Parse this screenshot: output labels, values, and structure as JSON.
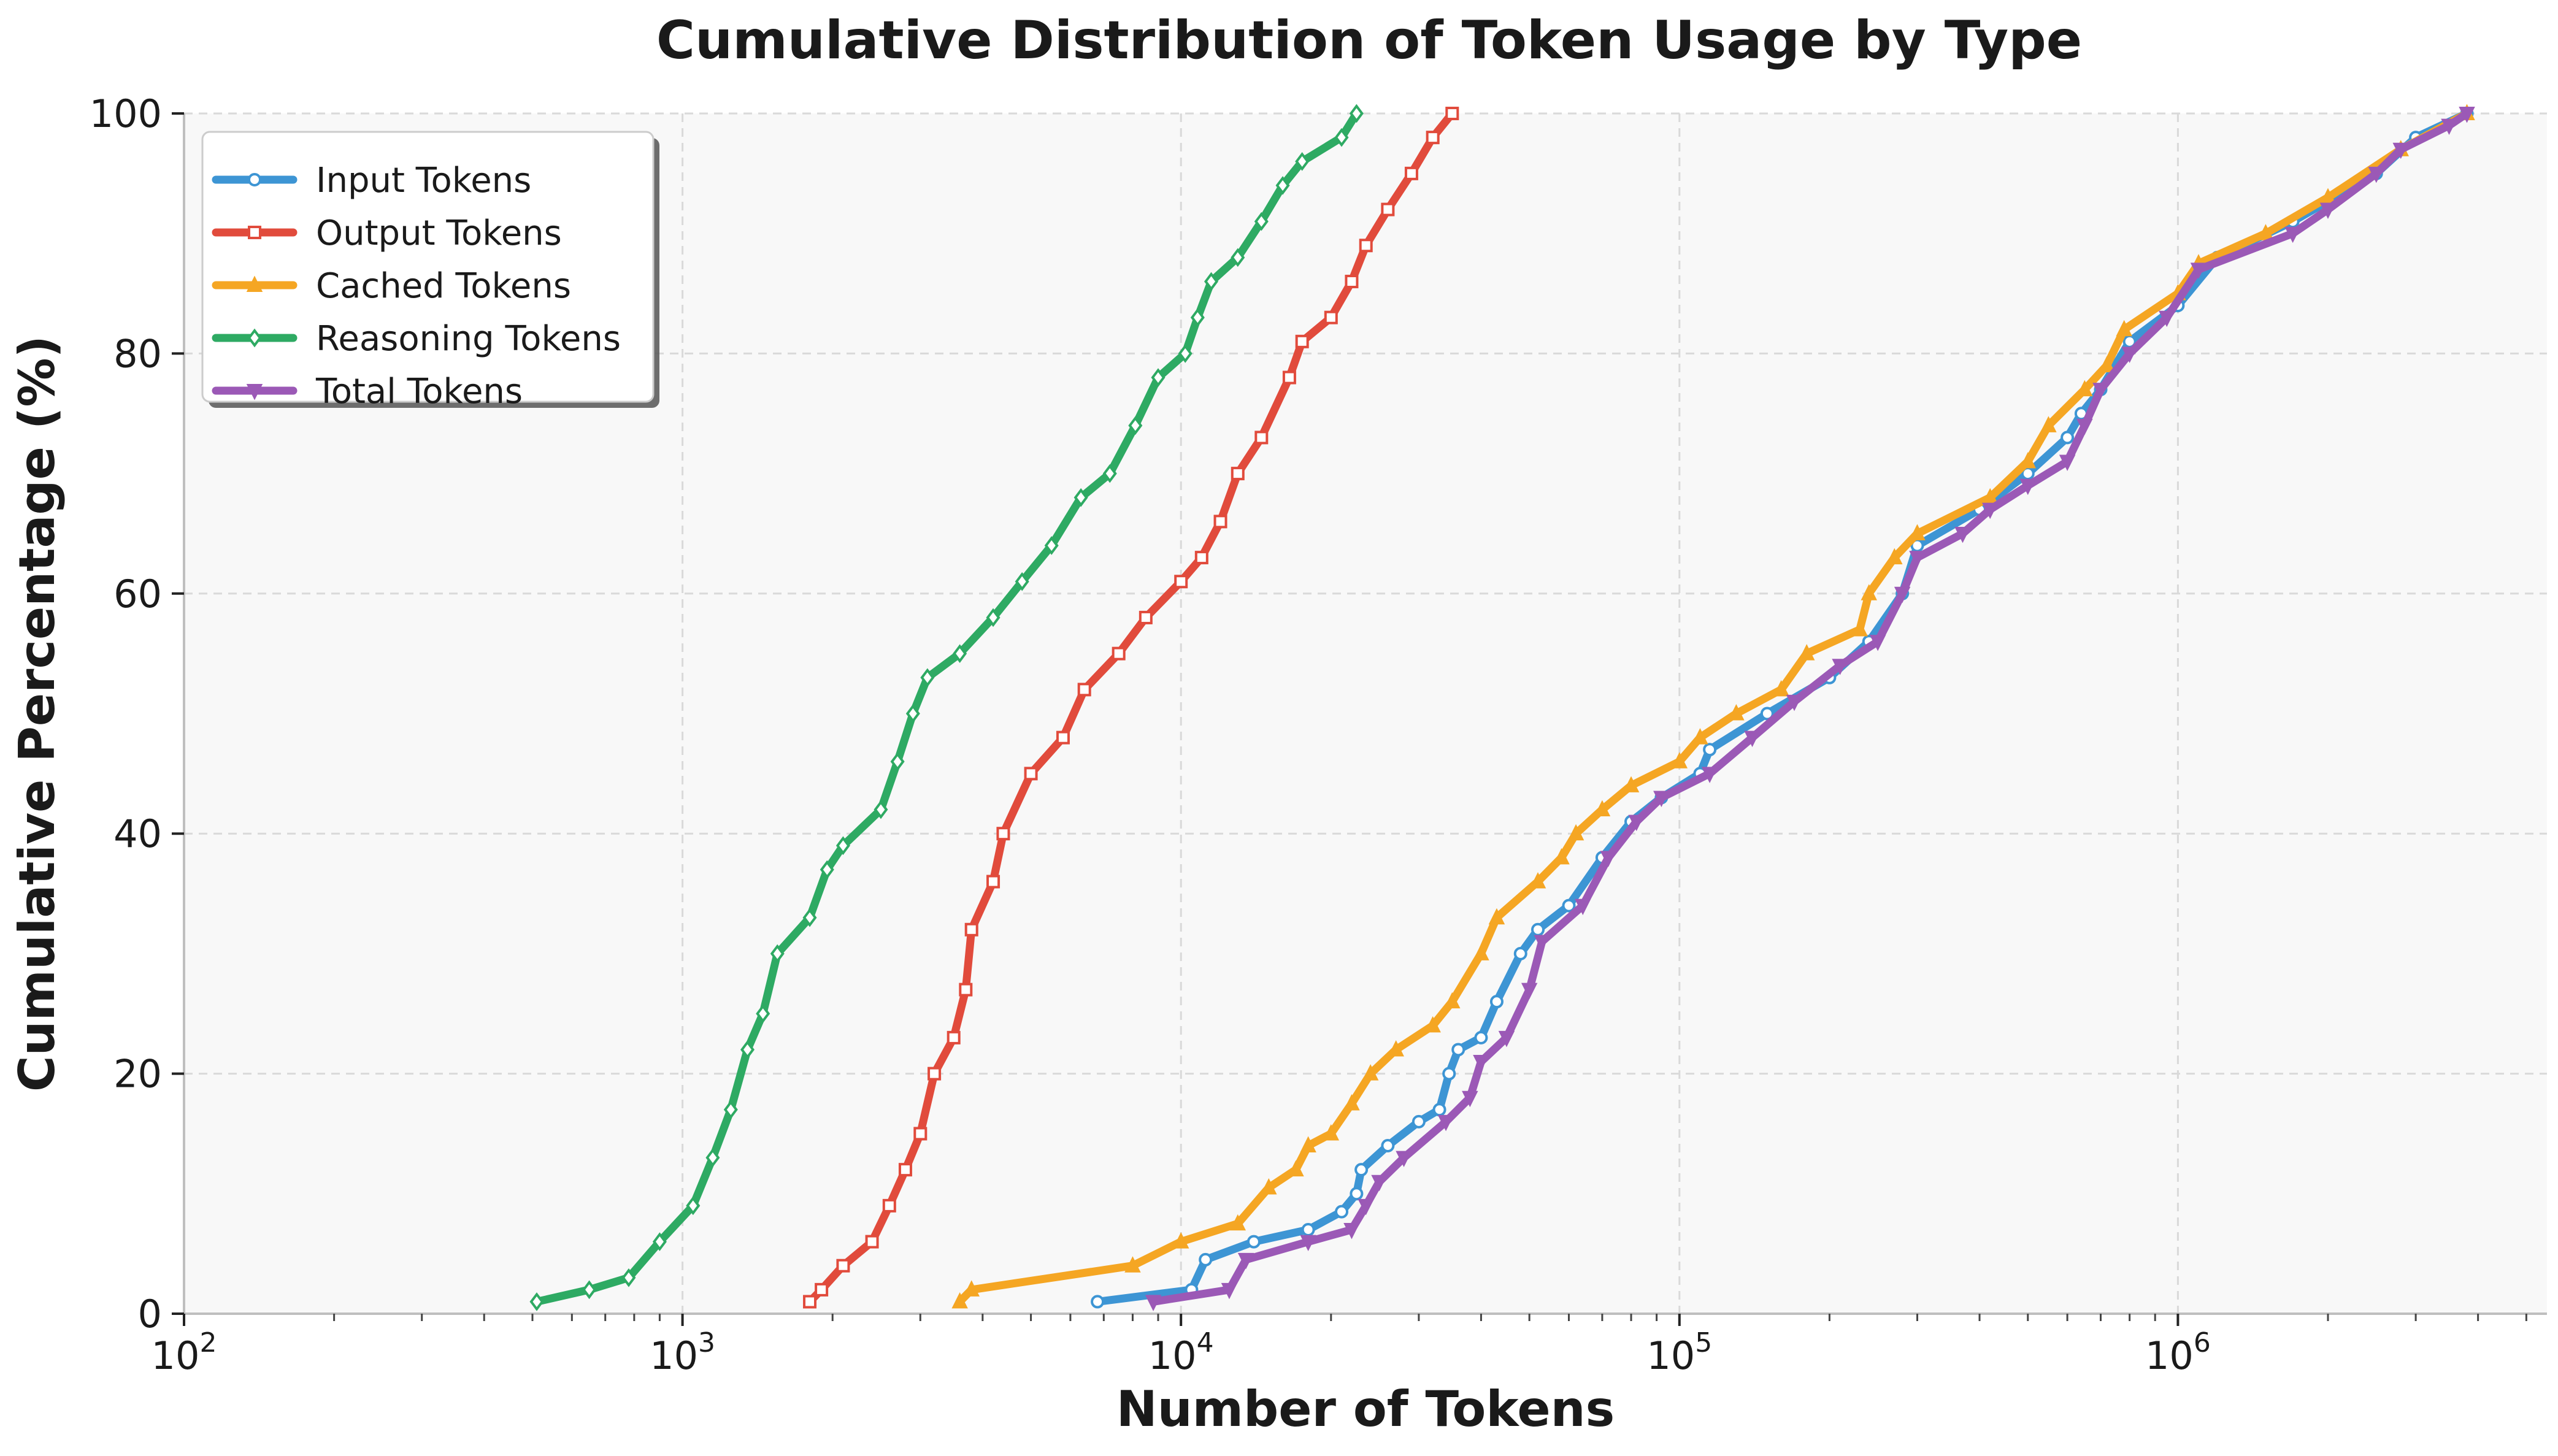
{
  "chart_data": {
    "type": "line",
    "title": "Cumulative Distribution of Token Usage by Type",
    "xlabel": "Number of Tokens",
    "ylabel": "Cumulative Percentage (%)",
    "xscale": "log",
    "xlim": [
      100,
      5500000
    ],
    "ylim": [
      0,
      100
    ],
    "x_ticks": [
      100,
      1000,
      10000,
      100000,
      1000000
    ],
    "x_tick_labels": [
      {
        "base": "10",
        "exp": "2"
      },
      {
        "base": "10",
        "exp": "3"
      },
      {
        "base": "10",
        "exp": "4"
      },
      {
        "base": "10",
        "exp": "5"
      },
      {
        "base": "10",
        "exp": "6"
      }
    ],
    "y_ticks": [
      0,
      20,
      40,
      60,
      80,
      100
    ],
    "y_tick_labels": [
      "0",
      "20",
      "40",
      "60",
      "80",
      "100"
    ],
    "grid": true,
    "legend_position": "top-left",
    "series": [
      {
        "name": "Input Tokens",
        "color": "#3d95d4",
        "marker": "circle",
        "points": [
          [
            6800,
            1
          ],
          [
            10500,
            2
          ],
          [
            11200,
            4.5
          ],
          [
            14000,
            6
          ],
          [
            18000,
            7
          ],
          [
            21000,
            8.5
          ],
          [
            22500,
            10
          ],
          [
            23000,
            12
          ],
          [
            26000,
            14
          ],
          [
            30000,
            16
          ],
          [
            33000,
            17
          ],
          [
            34500,
            20
          ],
          [
            36000,
            22
          ],
          [
            40000,
            23
          ],
          [
            43000,
            26
          ],
          [
            48000,
            30
          ],
          [
            52000,
            32
          ],
          [
            60000,
            34
          ],
          [
            70000,
            38
          ],
          [
            80000,
            41
          ],
          [
            92000,
            43
          ],
          [
            110000,
            45
          ],
          [
            115000,
            47
          ],
          [
            150000,
            50
          ],
          [
            200000,
            53
          ],
          [
            240000,
            56
          ],
          [
            280000,
            60
          ],
          [
            300000,
            64
          ],
          [
            400000,
            67
          ],
          [
            500000,
            70
          ],
          [
            600000,
            73
          ],
          [
            640000,
            75
          ],
          [
            700000,
            77
          ],
          [
            800000,
            81
          ],
          [
            1000000,
            84
          ],
          [
            1200000,
            88
          ],
          [
            1700000,
            91
          ],
          [
            2500000,
            95
          ],
          [
            3000000,
            98
          ],
          [
            3800000,
            100
          ]
        ]
      },
      {
        "name": "Output Tokens",
        "color": "#e14b3c",
        "marker": "square",
        "points": [
          [
            1800,
            1
          ],
          [
            1900,
            2
          ],
          [
            2100,
            4
          ],
          [
            2400,
            6
          ],
          [
            2600,
            9
          ],
          [
            2800,
            12
          ],
          [
            3000,
            15
          ],
          [
            3200,
            20
          ],
          [
            3500,
            23
          ],
          [
            3700,
            27
          ],
          [
            3800,
            32
          ],
          [
            4200,
            36
          ],
          [
            4400,
            40
          ],
          [
            5000,
            45
          ],
          [
            5800,
            48
          ],
          [
            6400,
            52
          ],
          [
            7500,
            55
          ],
          [
            8500,
            58
          ],
          [
            10000,
            61
          ],
          [
            11000,
            63
          ],
          [
            12000,
            66
          ],
          [
            13000,
            70
          ],
          [
            14500,
            73
          ],
          [
            16500,
            78
          ],
          [
            17500,
            81
          ],
          [
            20000,
            83
          ],
          [
            22000,
            86
          ],
          [
            23500,
            89
          ],
          [
            26000,
            92
          ],
          [
            29000,
            95
          ],
          [
            32000,
            98
          ],
          [
            35000,
            100
          ]
        ]
      },
      {
        "name": "Cached Tokens",
        "color": "#f5a623",
        "marker": "triangle-up",
        "points": [
          [
            3600,
            1
          ],
          [
            3800,
            2
          ],
          [
            8000,
            4
          ],
          [
            10000,
            6
          ],
          [
            13000,
            7.5
          ],
          [
            15000,
            10.5
          ],
          [
            17000,
            12
          ],
          [
            18000,
            14
          ],
          [
            20000,
            15
          ],
          [
            22000,
            17.5
          ],
          [
            24000,
            20
          ],
          [
            27000,
            22
          ],
          [
            32000,
            24
          ],
          [
            35000,
            26
          ],
          [
            40000,
            30
          ],
          [
            43000,
            33
          ],
          [
            52000,
            36
          ],
          [
            58000,
            38
          ],
          [
            62000,
            40
          ],
          [
            70000,
            42
          ],
          [
            80000,
            44
          ],
          [
            100000,
            46
          ],
          [
            110000,
            48
          ],
          [
            130000,
            50
          ],
          [
            160000,
            52
          ],
          [
            180000,
            55
          ],
          [
            230000,
            57
          ],
          [
            240000,
            60
          ],
          [
            270000,
            63
          ],
          [
            300000,
            65
          ],
          [
            420000,
            68
          ],
          [
            500000,
            71
          ],
          [
            550000,
            74
          ],
          [
            650000,
            77
          ],
          [
            720000,
            79
          ],
          [
            780000,
            82
          ],
          [
            1000000,
            85
          ],
          [
            1100000,
            87.5
          ],
          [
            1500000,
            90
          ],
          [
            2000000,
            93
          ],
          [
            2800000,
            97
          ],
          [
            3800000,
            100
          ]
        ]
      },
      {
        "name": "Reasoning Tokens",
        "color": "#2eaa63",
        "marker": "diamond",
        "points": [
          [
            510,
            1
          ],
          [
            650,
            2
          ],
          [
            780,
            3
          ],
          [
            900,
            6
          ],
          [
            1050,
            9
          ],
          [
            1150,
            13
          ],
          [
            1250,
            17
          ],
          [
            1350,
            22
          ],
          [
            1450,
            25
          ],
          [
            1550,
            30
          ],
          [
            1800,
            33
          ],
          [
            1950,
            37
          ],
          [
            2100,
            39
          ],
          [
            2500,
            42
          ],
          [
            2700,
            46
          ],
          [
            2900,
            50
          ],
          [
            3100,
            53
          ],
          [
            3600,
            55
          ],
          [
            4200,
            58
          ],
          [
            4800,
            61
          ],
          [
            5500,
            64
          ],
          [
            6300,
            68
          ],
          [
            7200,
            70
          ],
          [
            8100,
            74
          ],
          [
            9000,
            78
          ],
          [
            10200,
            80
          ],
          [
            10800,
            83
          ],
          [
            11500,
            86
          ],
          [
            13000,
            88
          ],
          [
            14500,
            91
          ],
          [
            16000,
            94
          ],
          [
            17500,
            96
          ],
          [
            21000,
            98
          ],
          [
            22500,
            100
          ]
        ]
      },
      {
        "name": "Total Tokens",
        "color": "#9b59b6",
        "marker": "triangle-down",
        "points": [
          [
            8800,
            1
          ],
          [
            12500,
            2
          ],
          [
            13500,
            4.5
          ],
          [
            18000,
            6
          ],
          [
            22000,
            7
          ],
          [
            23500,
            9
          ],
          [
            25000,
            11
          ],
          [
            28000,
            13
          ],
          [
            34000,
            16
          ],
          [
            38000,
            18
          ],
          [
            40000,
            21
          ],
          [
            45000,
            23
          ],
          [
            50000,
            27
          ],
          [
            53000,
            31
          ],
          [
            64000,
            34
          ],
          [
            72000,
            38
          ],
          [
            82000,
            41
          ],
          [
            92000,
            43
          ],
          [
            115000,
            45
          ],
          [
            140000,
            48
          ],
          [
            170000,
            51
          ],
          [
            210000,
            54
          ],
          [
            250000,
            56
          ],
          [
            280000,
            60
          ],
          [
            300000,
            63
          ],
          [
            370000,
            65
          ],
          [
            420000,
            67
          ],
          [
            500000,
            69
          ],
          [
            600000,
            71
          ],
          [
            650000,
            74
          ],
          [
            700000,
            77
          ],
          [
            800000,
            80
          ],
          [
            950000,
            83
          ],
          [
            1100000,
            87
          ],
          [
            1700000,
            90
          ],
          [
            2000000,
            92
          ],
          [
            2500000,
            95
          ],
          [
            2800000,
            97
          ],
          [
            3500000,
            99
          ],
          [
            3800000,
            100
          ]
        ]
      }
    ]
  }
}
